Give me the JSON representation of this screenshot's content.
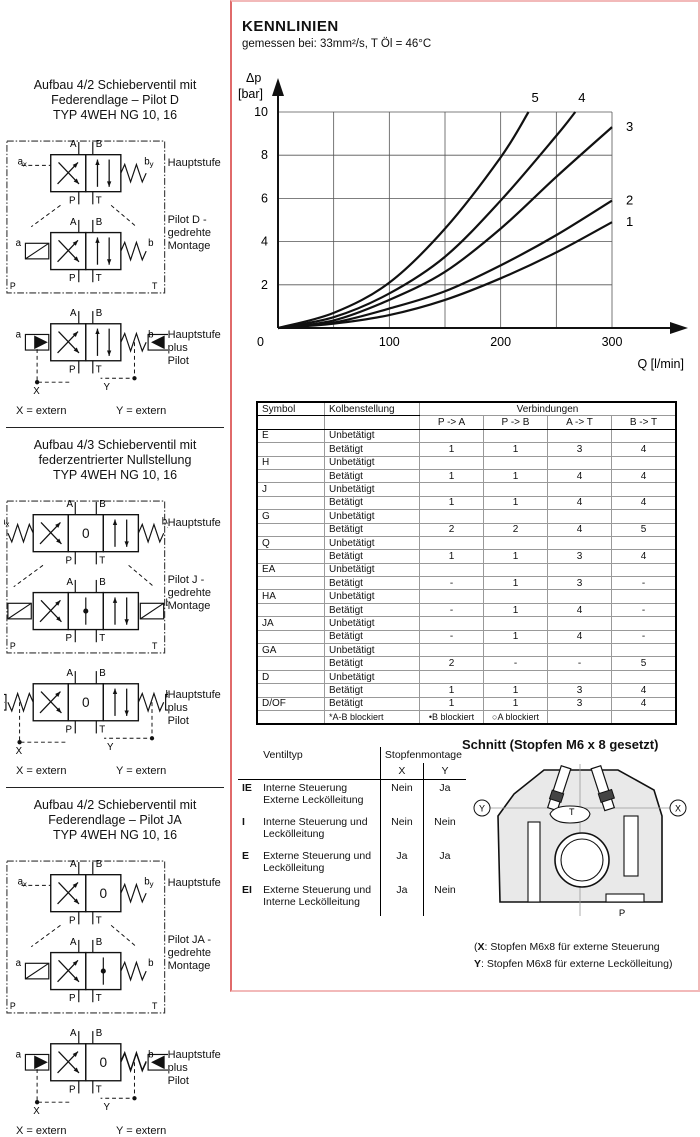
{
  "colors": {
    "divider": "#e06a6a",
    "frame": "#f2b9b9",
    "ink": "#111111",
    "grid": "#444444",
    "body_fill": "#e9e9e9"
  },
  "left_column": {
    "port_labels": {
      "a": "a",
      "b": "b",
      "x": "x",
      "y": "y",
      "A": "A",
      "B": "B",
      "P": "P",
      "T": "T",
      "X": "X",
      "Y": "Y",
      "zero": "0"
    },
    "blocks": [
      {
        "title_lines": [
          "Aufbau 4/2 Schieberventil mit",
          "Federendlage – Pilot D",
          "TYP 4WEH NG 10, 16"
        ],
        "main_label": "Hauptstufe",
        "pilot_label": "Pilot D -\ngedrehte\nMontage",
        "combined_label": "Hauptstufe\nplus\nPilot",
        "main_type": "m42",
        "pilot_type": "p42",
        "combined_type": "c42",
        "extern_x": "X = extern",
        "extern_y": "Y = extern"
      },
      {
        "title_lines": [
          "Aufbau 4/3 Schieberventil mit",
          "federzentrierter Nullstellung",
          "TYP 4WEH NG 10, 16"
        ],
        "main_label": "Hauptstufe",
        "pilot_label": "Pilot J -\ngedrehte\nMontage",
        "combined_label": "Hauptstufe\nplus\nPilot",
        "main_type": "m43",
        "pilot_type": "p43",
        "combined_type": "c43",
        "extern_x": "X = extern",
        "extern_y": "Y = extern"
      },
      {
        "title_lines": [
          "Aufbau 4/2 Schieberventil mit",
          "Federendlage – Pilot JA",
          "TYP 4WEH NG 10, 16"
        ],
        "main_label": "Hauptstufe",
        "pilot_label": "Pilot JA -\ngedrehte\nMontage",
        "combined_label": "Hauptstufe\nplus\nPilot",
        "main_type": "m42z",
        "pilot_type": "pJA",
        "combined_type": "c42z",
        "extern_x": "X = extern",
        "extern_y": "Y = extern"
      }
    ]
  },
  "kennlinien": {
    "title": "KENNLINIEN",
    "subtitle": "gemessen bei: 33mm²/s, T Öl = 46°C"
  },
  "chart_data": {
    "type": "line",
    "xlabel": "Q [l/min]",
    "ylabel_1": "Δp",
    "ylabel_2": "[bar]",
    "xlim": [
      0,
      300
    ],
    "ylim": [
      0,
      10
    ],
    "xticks": [
      100,
      200,
      300
    ],
    "yticks": [
      2,
      4,
      6,
      8,
      10
    ],
    "origin_label": "0",
    "grid": true,
    "grid_step_x": 50,
    "grid_step_y": 2,
    "series": [
      {
        "name": "1",
        "x": [
          0,
          50,
          100,
          150,
          200,
          250,
          300
        ],
        "y": [
          0,
          0.2,
          0.6,
          1.3,
          2.3,
          3.5,
          4.9
        ]
      },
      {
        "name": "2",
        "x": [
          0,
          50,
          100,
          150,
          200,
          250,
          300
        ],
        "y": [
          0,
          0.25,
          0.9,
          1.7,
          2.9,
          4.3,
          5.9
        ]
      },
      {
        "name": "3",
        "x": [
          0,
          50,
          100,
          150,
          200,
          250,
          300
        ],
        "y": [
          0,
          0.35,
          1.3,
          2.6,
          4.6,
          7.0,
          9.3
        ]
      },
      {
        "name": "4",
        "x": [
          0,
          50,
          100,
          150,
          200,
          250,
          267
        ],
        "y": [
          0,
          0.5,
          1.6,
          3.3,
          5.9,
          8.9,
          10
        ]
      },
      {
        "name": "5",
        "x": [
          0,
          50,
          100,
          150,
          200,
          225
        ],
        "y": [
          0,
          0.7,
          2.1,
          4.6,
          7.9,
          10
        ]
      }
    ]
  },
  "connections_table": {
    "col_symbol": "Symbol",
    "col_kolben": "Kolbenstellung",
    "col_verb": "Verbindungen",
    "sub_headers": [
      "P -> A",
      "P -> B",
      "A -> T",
      "B -> T"
    ],
    "state_unbet": "Unbetätigt",
    "state_bet": "Betätigt",
    "rows": [
      {
        "symbol": "E",
        "states": [
          {
            "label": "Unbetätigt",
            "vals": [
              "",
              "",
              "",
              ""
            ]
          },
          {
            "label": "Betätigt",
            "vals": [
              "1",
              "1",
              "3",
              "4"
            ]
          }
        ]
      },
      {
        "symbol": "H",
        "states": [
          {
            "label": "Unbetätigt",
            "vals": [
              "",
              "",
              "",
              ""
            ]
          },
          {
            "label": "Betätigt",
            "vals": [
              "1",
              "1",
              "4",
              "4"
            ]
          }
        ]
      },
      {
        "symbol": "J",
        "states": [
          {
            "label": "Unbetätigt",
            "vals": [
              "",
              "",
              "",
              ""
            ]
          },
          {
            "label": "Betätigt",
            "vals": [
              "1",
              "1",
              "4",
              "4"
            ]
          }
        ]
      },
      {
        "symbol": "G",
        "states": [
          {
            "label": "Unbetätigt",
            "vals": [
              "",
              "",
              "",
              ""
            ]
          },
          {
            "label": "Betätigt",
            "vals": [
              "2",
              "2",
              "4",
              "5"
            ]
          }
        ]
      },
      {
        "symbol": "Q",
        "states": [
          {
            "label": "Unbetätigt",
            "vals": [
              "",
              "",
              "",
              ""
            ]
          },
          {
            "label": "Betätigt",
            "vals": [
              "1",
              "1",
              "3",
              "4"
            ]
          }
        ]
      },
      {
        "symbol": "EA",
        "states": [
          {
            "label": "Unbetätigt",
            "vals": [
              "",
              "",
              "",
              ""
            ]
          },
          {
            "label": "Betätigt",
            "vals": [
              "-",
              "1",
              "3",
              "-"
            ]
          }
        ]
      },
      {
        "symbol": "HA",
        "states": [
          {
            "label": "Unbetätigt",
            "vals": [
              "",
              "",
              "",
              ""
            ]
          },
          {
            "label": "Betätigt",
            "vals": [
              "-",
              "1",
              "4",
              "-"
            ]
          }
        ]
      },
      {
        "symbol": "JA",
        "states": [
          {
            "label": "Unbetätigt",
            "vals": [
              "",
              "",
              "",
              ""
            ]
          },
          {
            "label": "Betätigt",
            "vals": [
              "-",
              "1",
              "4",
              "-"
            ]
          }
        ]
      },
      {
        "symbol": "GA",
        "states": [
          {
            "label": "Unbetätigt",
            "vals": [
              "",
              "",
              "",
              ""
            ]
          },
          {
            "label": "Betätigt",
            "vals": [
              "2",
              "-",
              "-",
              "5"
            ]
          }
        ]
      },
      {
        "symbol": "D",
        "states": [
          {
            "label": "Unbetätigt",
            "vals": [
              "",
              "",
              "",
              ""
            ]
          },
          {
            "label": "Betätigt",
            "vals": [
              "1",
              "1",
              "3",
              "4"
            ]
          }
        ]
      },
      {
        "symbol": "D/OF",
        "states": [
          {
            "label": "Betätigt",
            "vals": [
              "1",
              "1",
              "3",
              "4"
            ]
          }
        ]
      }
    ],
    "footnotes": [
      "*A-B blockiert",
      "•B blockiert",
      "○A blockiert"
    ]
  },
  "schnitt": {
    "title": "Schnitt (Stopfen M6 x 8 gesetzt)",
    "ventil_table": {
      "col1": "Ventiltyp",
      "col2": "Stopfenmontage",
      "sub": [
        "X",
        "Y"
      ],
      "rows": [
        {
          "code": "IE",
          "desc": "Interne Steuerung\nExterne Leckölleitung",
          "x": "Nein",
          "y": "Ja"
        },
        {
          "code": "I",
          "desc": "Interne Steuerung und\nLeckölleitung",
          "x": "Nein",
          "y": "Nein"
        },
        {
          "code": "E",
          "desc": "Externe Steuerung und\nLeckölleitung",
          "x": "Ja",
          "y": "Ja"
        },
        {
          "code": "EI",
          "desc": "Externe Steuerung und\nInterne Leckölleitung",
          "x": "Ja",
          "y": "Nein"
        }
      ]
    },
    "diagram_labels": {
      "Y": "Y",
      "X": "X",
      "T": "T",
      "P": "P"
    },
    "notes": [
      {
        "pre": "(",
        "key": "X",
        "text": ": Stopfen M6x8 für externe Steuerung"
      },
      {
        "pre": "",
        "key": "Y",
        "text": ": Stopfen M6x8 für externe Leckölleitung)"
      }
    ]
  }
}
